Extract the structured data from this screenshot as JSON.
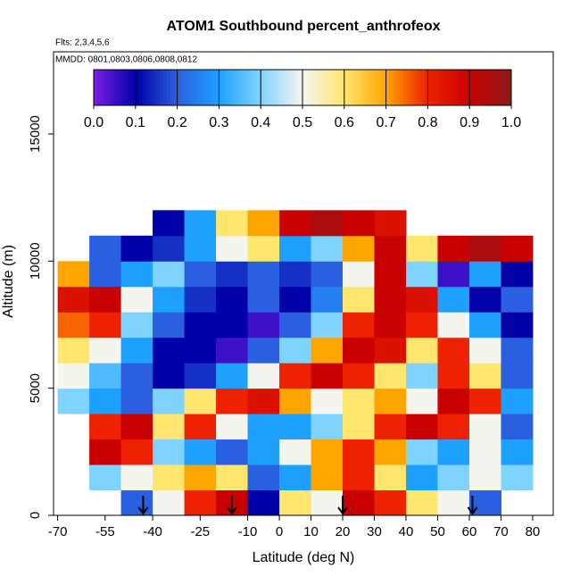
{
  "chart_data": {
    "type": "heatmap",
    "title": "ATOM1 Southbound percent_anthrofeox",
    "subtitle": "Flts: 2,3,4,5,6",
    "annotation": "MMDD: 0801,0803,0806,0808,0812",
    "x_label": "Latitude (deg N)",
    "y_label": "Altitude (m)",
    "xlim": [
      -71.3,
      86.5
    ],
    "ylim": [
      0,
      18230
    ],
    "xticks": [
      -70,
      -55,
      -40,
      -25,
      -10,
      0,
      10,
      20,
      30,
      40,
      50,
      60,
      70,
      80
    ],
    "yticks": [
      0,
      5000,
      10000,
      15000
    ],
    "x_edges": [
      -70,
      -60,
      -50,
      -40,
      -30,
      -20,
      -10,
      0,
      10,
      20,
      30,
      40,
      50,
      60,
      70,
      80
    ],
    "y_edges": [
      0,
      1000,
      2000,
      3000,
      4000,
      5000,
      6000,
      7000,
      8000,
      9000,
      10000,
      11000,
      12000
    ],
    "z": [
      [
        null,
        null,
        0.2,
        0.5,
        0.8,
        0.9,
        0.1,
        0.6,
        0.5,
        0.9,
        0.8,
        0.6,
        0.5,
        0.2,
        null
      ],
      [
        null,
        0.4,
        0.5,
        0.6,
        0.7,
        0.6,
        0.2,
        0.3,
        0.7,
        0.8,
        0.6,
        0.3,
        0.4,
        0.5,
        0.4
      ],
      [
        null,
        0.9,
        0.8,
        0.4,
        0.3,
        0.2,
        0.3,
        0.5,
        0.7,
        0.8,
        0.7,
        0.4,
        0.3,
        0.5,
        0.3
      ],
      [
        null,
        0.8,
        0.9,
        0.6,
        0.8,
        0.5,
        0.3,
        0.3,
        0.4,
        0.6,
        0.8,
        0.9,
        0.8,
        0.5,
        0.2
      ],
      [
        0.4,
        0.3,
        0.2,
        0.4,
        0.6,
        0.8,
        0.85,
        0.7,
        0.5,
        0.6,
        0.7,
        0.5,
        0.9,
        0.8,
        0.3
      ],
      [
        0.5,
        0.35,
        0.2,
        0.1,
        0.15,
        0.3,
        0.5,
        0.8,
        0.9,
        0.8,
        0.6,
        0.4,
        0.8,
        0.6,
        0.2
      ],
      [
        0.6,
        0.5,
        0.3,
        0.1,
        0.1,
        0.05,
        0.2,
        0.4,
        0.7,
        0.9,
        0.85,
        0.6,
        0.8,
        0.5,
        0.2
      ],
      [
        0.75,
        0.8,
        0.4,
        0.2,
        0.1,
        0.1,
        0.05,
        0.2,
        0.4,
        0.8,
        0.9,
        0.8,
        0.5,
        0.3,
        0.1
      ],
      [
        0.85,
        0.9,
        0.5,
        0.3,
        0.15,
        0.1,
        0.2,
        0.1,
        0.25,
        0.6,
        0.9,
        0.85,
        0.3,
        0.1,
        0.2
      ],
      [
        0.7,
        0.2,
        0.3,
        0.4,
        0.2,
        0.15,
        0.2,
        0.15,
        0.2,
        0.5,
        0.9,
        0.4,
        0.05,
        0.3,
        0.1
      ],
      [
        null,
        0.2,
        0.1,
        0.15,
        0.3,
        0.5,
        0.6,
        0.3,
        0.4,
        0.7,
        0.9,
        0.6,
        0.9,
        0.95,
        0.9
      ],
      [
        null,
        null,
        null,
        0.1,
        0.3,
        0.6,
        0.7,
        0.9,
        0.95,
        0.9,
        0.85,
        null,
        null,
        null,
        null
      ]
    ],
    "colorscale": [
      "#7b1fe6",
      "#0000a8",
      "#2a5fe0",
      "#1ea0ff",
      "#7fd4ff",
      "#f5f5f0",
      "#ffe66e",
      "#ffa500",
      "#ee2200",
      "#c80000",
      "#8b1a1a"
    ],
    "colorbar_lim": [
      0,
      1
    ],
    "colorbar_ticks": [
      {
        "value": 0,
        "label": "0.0"
      },
      0.1,
      0.2,
      0.3,
      0.4,
      0.5,
      0.6,
      0.7,
      0.8,
      0.9,
      {
        "value": 1,
        "label": "1.0"
      }
    ],
    "markers": [
      -43,
      -15,
      20,
      61
    ]
  }
}
